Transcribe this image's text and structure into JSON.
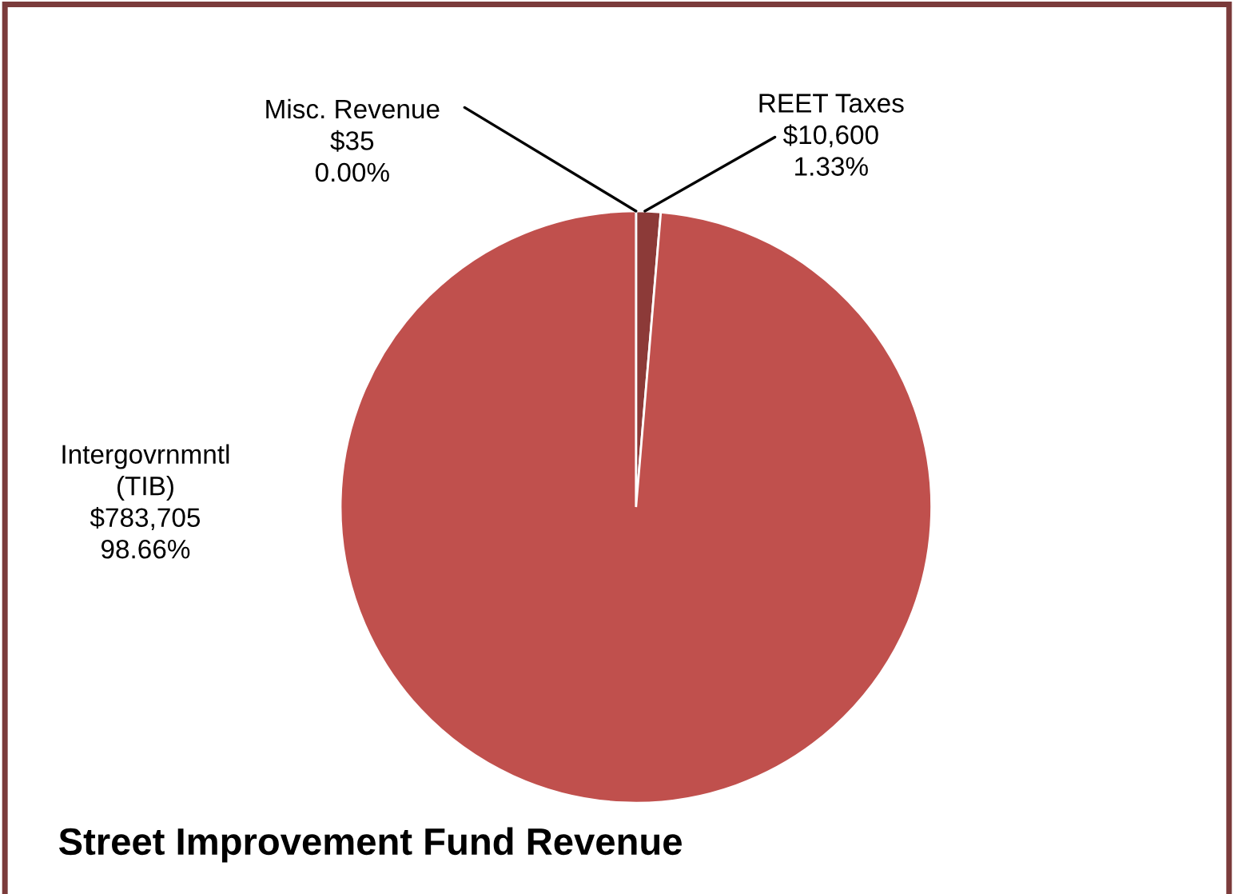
{
  "chart_data": {
    "type": "pie",
    "title": "Street Improvement Fund Revenue",
    "categories": [
      "Misc. Revenue",
      "REET Taxes",
      "Intergovrnmntl\n(TIB)"
    ],
    "values": [
      35,
      10600,
      783705
    ],
    "colors": [
      "#4f81bd",
      "#8c3a38",
      "#c0504d"
    ],
    "value_labels": [
      "$35\n0.00%",
      "$10,600\n1.33%",
      "$783,705\n98.66%"
    ],
    "legend": false
  }
}
